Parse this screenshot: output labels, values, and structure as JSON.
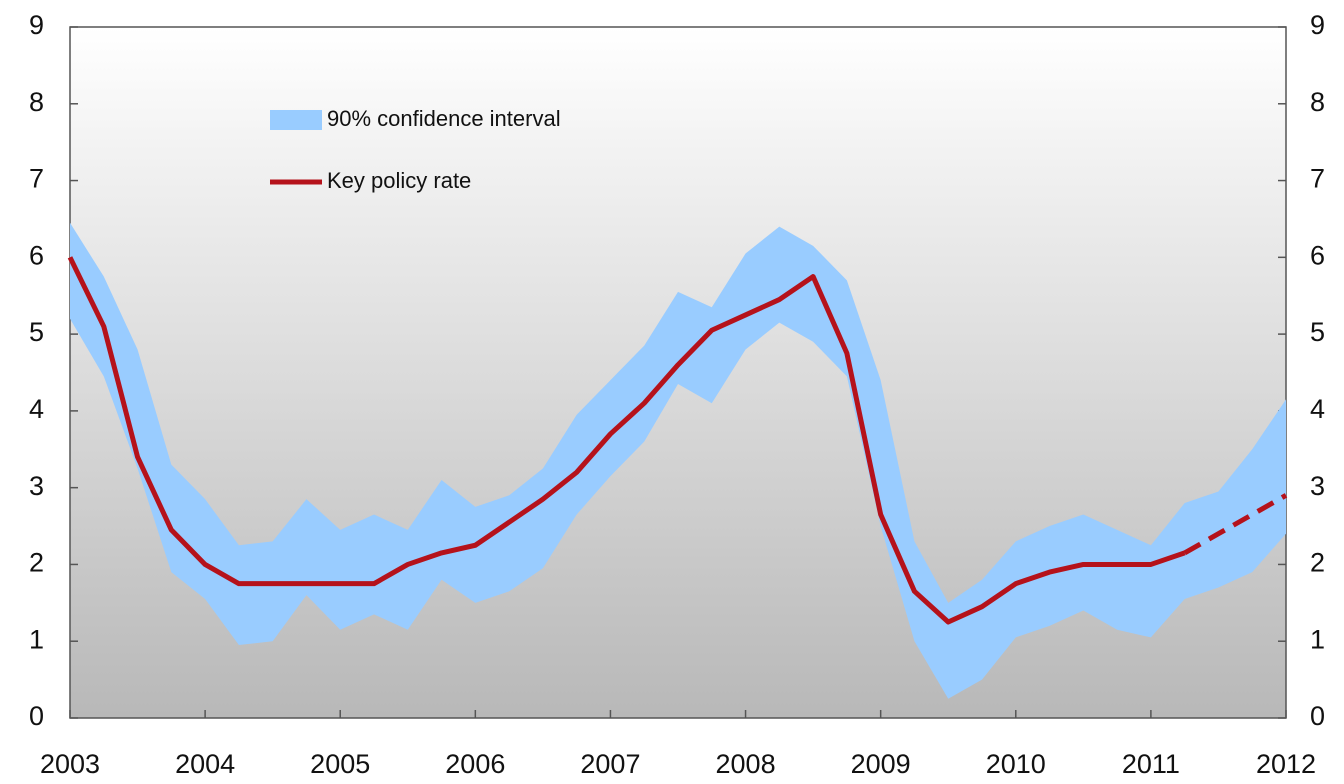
{
  "chart_data": {
    "type": "line",
    "x": [
      2003,
      2003.25,
      2003.5,
      2003.75,
      2004,
      2004.25,
      2004.5,
      2004.75,
      2005,
      2005.25,
      2005.5,
      2005.75,
      2006,
      2006.25,
      2006.5,
      2006.75,
      2007,
      2007.25,
      2007.5,
      2007.75,
      2008,
      2008.25,
      2008.5,
      2008.75,
      2009,
      2009.25,
      2009.5,
      2009.75,
      2010,
      2010.25,
      2010.5,
      2010.75,
      2011,
      2011.25,
      2011.5,
      2011.75,
      2012
    ],
    "xlim": [
      2003,
      2012
    ],
    "xticks": [
      2003,
      2004,
      2005,
      2006,
      2007,
      2008,
      2009,
      2010,
      2011,
      2012
    ],
    "ylim": [
      0,
      9
    ],
    "yticks": [
      0,
      1,
      2,
      3,
      4,
      5,
      6,
      7,
      8,
      9
    ],
    "y2lim": [
      0,
      9
    ],
    "y2ticks": [
      0,
      1,
      2,
      3,
      4,
      5,
      6,
      7,
      8,
      9
    ],
    "legend": "upper-left",
    "series": [
      {
        "name": "90% confidence interval",
        "type": "band",
        "color": "#99ccff",
        "upper": [
          6.45,
          5.75,
          4.8,
          3.3,
          2.85,
          2.25,
          2.3,
          2.85,
          2.45,
          2.65,
          2.45,
          3.1,
          2.75,
          2.9,
          3.25,
          3.95,
          4.4,
          4.85,
          5.55,
          5.35,
          6.05,
          6.4,
          6.15,
          5.7,
          4.4,
          2.3,
          1.5,
          1.8,
          2.3,
          2.5,
          2.65,
          2.45,
          2.25,
          2.8,
          2.95,
          3.5,
          4.15
        ],
        "lower": [
          5.2,
          4.45,
          3.25,
          1.9,
          1.55,
          0.95,
          1.0,
          1.6,
          1.15,
          1.35,
          1.15,
          1.8,
          1.5,
          1.65,
          1.95,
          2.65,
          3.15,
          3.6,
          4.35,
          4.1,
          4.8,
          5.15,
          4.9,
          4.45,
          2.5,
          1.0,
          0.25,
          0.5,
          1.05,
          1.2,
          1.4,
          1.15,
          1.05,
          1.55,
          1.7,
          1.9,
          2.4
        ]
      },
      {
        "name": "Key policy rate",
        "type": "line",
        "color": "#b5121b",
        "dashed_after": 2011.25,
        "values": [
          6.0,
          5.1,
          3.4,
          2.45,
          2.0,
          1.75,
          1.75,
          1.75,
          1.75,
          1.75,
          2.0,
          2.15,
          2.25,
          2.55,
          2.85,
          3.2,
          3.7,
          4.1,
          4.6,
          5.05,
          5.25,
          5.45,
          5.75,
          4.75,
          2.65,
          1.65,
          1.25,
          1.45,
          1.75,
          1.9,
          2.0,
          2.0,
          2.0,
          2.15,
          2.4,
          2.65,
          2.9
        ]
      }
    ]
  }
}
